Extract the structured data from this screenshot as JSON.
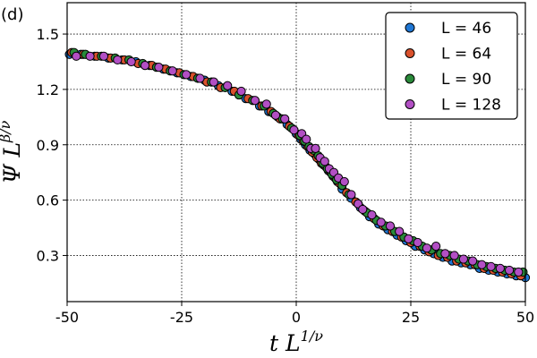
{
  "panel_label": "(d)",
  "chart_data": {
    "type": "scatter",
    "xlabel": {
      "main": "t L",
      "sup": "1/ν"
    },
    "ylabel": {
      "main": "Ψ L",
      "sup": "β/ν"
    },
    "xlim": [
      -50,
      50
    ],
    "ylim": [
      0.05,
      1.67
    ],
    "xticks": [
      -50,
      -25,
      0,
      25,
      50
    ],
    "xtick_labels": [
      "-50",
      "-25",
      "0",
      "25",
      "50"
    ],
    "yticks": [
      0.3,
      0.6,
      0.9,
      1.2,
      1.5
    ],
    "ytick_labels": [
      "0.3",
      "0.6",
      "0.9",
      "1.2",
      "1.5"
    ],
    "grid": true,
    "legend_position": "top-right",
    "series": [
      {
        "name": "L = 46",
        "color": "#1f77d4",
        "points": [
          [
            -49.5,
            1.39
          ],
          [
            -47,
            1.39
          ],
          [
            -44,
            1.38
          ],
          [
            -41,
            1.37
          ],
          [
            -38,
            1.36
          ],
          [
            -35,
            1.35
          ],
          [
            -32,
            1.33
          ],
          [
            -29,
            1.31
          ],
          [
            -26,
            1.29
          ],
          [
            -23,
            1.27
          ],
          [
            -20,
            1.25
          ],
          [
            -17,
            1.22
          ],
          [
            -14,
            1.19
          ],
          [
            -11,
            1.15
          ],
          [
            -8,
            1.11
          ],
          [
            -6,
            1.08
          ],
          [
            -4,
            1.05
          ],
          [
            -2,
            1.01
          ],
          [
            0,
            0.96
          ],
          [
            1,
            0.93
          ],
          [
            2,
            0.9
          ],
          [
            3,
            0.87
          ],
          [
            4,
            0.85
          ],
          [
            5,
            0.82
          ],
          [
            6,
            0.79
          ],
          [
            7,
            0.76
          ],
          [
            8,
            0.73
          ],
          [
            9,
            0.7
          ],
          [
            10,
            0.66
          ],
          [
            12,
            0.61
          ],
          [
            14,
            0.56
          ],
          [
            16,
            0.51
          ],
          [
            18,
            0.47
          ],
          [
            20,
            0.44
          ],
          [
            22,
            0.41
          ],
          [
            24,
            0.38
          ],
          [
            26,
            0.35
          ],
          [
            28,
            0.33
          ],
          [
            30,
            0.31
          ],
          [
            32,
            0.29
          ],
          [
            34,
            0.27
          ],
          [
            36,
            0.26
          ],
          [
            38,
            0.25
          ],
          [
            40,
            0.23
          ],
          [
            42,
            0.22
          ],
          [
            44,
            0.21
          ],
          [
            46,
            0.2
          ],
          [
            48,
            0.19
          ],
          [
            50,
            0.18
          ]
        ]
      },
      {
        "name": "L = 64",
        "color": "#d9512c",
        "points": [
          [
            -49,
            1.4
          ],
          [
            -46.5,
            1.39
          ],
          [
            -43.5,
            1.38
          ],
          [
            -40.5,
            1.37
          ],
          [
            -37.5,
            1.36
          ],
          [
            -34.5,
            1.34
          ],
          [
            -31.5,
            1.33
          ],
          [
            -28.5,
            1.31
          ],
          [
            -25.5,
            1.29
          ],
          [
            -22.5,
            1.27
          ],
          [
            -19.5,
            1.24
          ],
          [
            -16.5,
            1.21
          ],
          [
            -13.5,
            1.19
          ],
          [
            -10.5,
            1.15
          ],
          [
            -7.5,
            1.11
          ],
          [
            -5.5,
            1.08
          ],
          [
            -3.5,
            1.04
          ],
          [
            -1.5,
            1.0
          ],
          [
            0.5,
            0.95
          ],
          [
            1.5,
            0.92
          ],
          [
            2.5,
            0.89
          ],
          [
            3.5,
            0.86
          ],
          [
            4.5,
            0.83
          ],
          [
            5.5,
            0.8
          ],
          [
            6.5,
            0.78
          ],
          [
            7.5,
            0.75
          ],
          [
            8.5,
            0.72
          ],
          [
            9.5,
            0.69
          ],
          [
            11,
            0.64
          ],
          [
            13,
            0.59
          ],
          [
            15,
            0.54
          ],
          [
            17,
            0.5
          ],
          [
            19,
            0.46
          ],
          [
            21,
            0.43
          ],
          [
            23,
            0.4
          ],
          [
            25,
            0.37
          ],
          [
            27,
            0.35
          ],
          [
            29,
            0.32
          ],
          [
            31,
            0.3
          ],
          [
            33,
            0.29
          ],
          [
            35,
            0.27
          ],
          [
            37,
            0.26
          ],
          [
            39,
            0.25
          ],
          [
            41,
            0.23
          ],
          [
            43,
            0.22
          ],
          [
            45,
            0.21
          ],
          [
            47,
            0.2
          ],
          [
            49,
            0.19
          ]
        ]
      },
      {
        "name": "L = 90",
        "color": "#2a8a3a",
        "points": [
          [
            -48.5,
            1.4
          ],
          [
            -46,
            1.39
          ],
          [
            -42.5,
            1.38
          ],
          [
            -39.5,
            1.37
          ],
          [
            -36.5,
            1.36
          ],
          [
            -33.5,
            1.34
          ],
          [
            -30.5,
            1.32
          ],
          [
            -27.5,
            1.3
          ],
          [
            -24.5,
            1.28
          ],
          [
            -21.5,
            1.26
          ],
          [
            -18.5,
            1.24
          ],
          [
            -15.5,
            1.21
          ],
          [
            -12.5,
            1.17
          ],
          [
            -9.5,
            1.14
          ],
          [
            -7,
            1.11
          ],
          [
            -5,
            1.07
          ],
          [
            -3,
            1.04
          ],
          [
            -1,
            0.99
          ],
          [
            0.8,
            0.95
          ],
          [
            1.8,
            0.92
          ],
          [
            2.8,
            0.89
          ],
          [
            3.8,
            0.87
          ],
          [
            4.8,
            0.84
          ],
          [
            5.8,
            0.8
          ],
          [
            6.8,
            0.77
          ],
          [
            7.8,
            0.74
          ],
          [
            8.8,
            0.71
          ],
          [
            10,
            0.68
          ],
          [
            11.5,
            0.63
          ],
          [
            13.5,
            0.58
          ],
          [
            15.5,
            0.53
          ],
          [
            17.5,
            0.49
          ],
          [
            19.5,
            0.46
          ],
          [
            21.5,
            0.43
          ],
          [
            23.5,
            0.4
          ],
          [
            25.5,
            0.38
          ],
          [
            27.5,
            0.35
          ],
          [
            29.5,
            0.33
          ],
          [
            31.5,
            0.31
          ],
          [
            33.5,
            0.3
          ],
          [
            35.5,
            0.28
          ],
          [
            37.5,
            0.27
          ],
          [
            39.5,
            0.25
          ],
          [
            41.5,
            0.24
          ],
          [
            43.5,
            0.23
          ],
          [
            45.5,
            0.22
          ],
          [
            47.5,
            0.21
          ],
          [
            49.5,
            0.21
          ]
        ]
      },
      {
        "name": "L = 128",
        "color": "#b24fc4",
        "points": [
          [
            -48,
            1.38
          ],
          [
            -45,
            1.38
          ],
          [
            -42,
            1.38
          ],
          [
            -39,
            1.36
          ],
          [
            -36,
            1.35
          ],
          [
            -33,
            1.33
          ],
          [
            -30,
            1.32
          ],
          [
            -27,
            1.3
          ],
          [
            -24,
            1.28
          ],
          [
            -21,
            1.26
          ],
          [
            -18,
            1.24
          ],
          [
            -15,
            1.22
          ],
          [
            -12,
            1.19
          ],
          [
            -9,
            1.14
          ],
          [
            -6.5,
            1.12
          ],
          [
            -4.5,
            1.06
          ],
          [
            -2.5,
            1.04
          ],
          [
            -0.5,
            0.98
          ],
          [
            1.2,
            0.96
          ],
          [
            2.2,
            0.93
          ],
          [
            3.2,
            0.88
          ],
          [
            4.2,
            0.88
          ],
          [
            5.2,
            0.83
          ],
          [
            6.2,
            0.81
          ],
          [
            7.2,
            0.77
          ],
          [
            8.2,
            0.75
          ],
          [
            9.2,
            0.72
          ],
          [
            10.5,
            0.7
          ],
          [
            12,
            0.63
          ],
          [
            13.5,
            0.58
          ],
          [
            14.5,
            0.55
          ],
          [
            16.5,
            0.52
          ],
          [
            18.5,
            0.48
          ],
          [
            20.5,
            0.46
          ],
          [
            22.5,
            0.43
          ],
          [
            24.5,
            0.39
          ],
          [
            26.5,
            0.37
          ],
          [
            28.5,
            0.34
          ],
          [
            30.5,
            0.35
          ],
          [
            32.5,
            0.31
          ],
          [
            34.5,
            0.3
          ],
          [
            36.5,
            0.28
          ],
          [
            38.5,
            0.27
          ],
          [
            40.5,
            0.25
          ],
          [
            42.5,
            0.24
          ],
          [
            44.5,
            0.23
          ],
          [
            46.5,
            0.22
          ],
          [
            48.5,
            0.21
          ]
        ]
      }
    ]
  }
}
